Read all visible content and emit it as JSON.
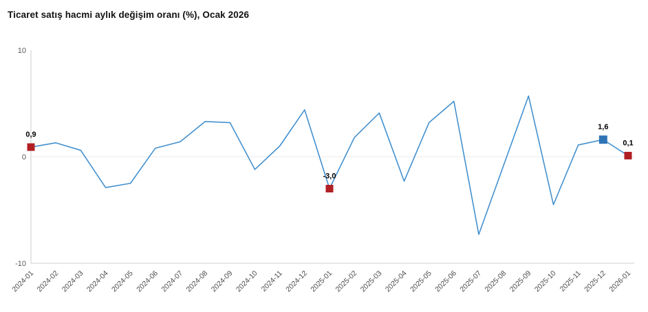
{
  "title": "Ticaret satış hacmi aylık değişim oranı (%), Ocak 2026",
  "colors": {
    "line": "#4390ce",
    "marker_red": "#b11f24",
    "marker_blue": "#2f74b5",
    "axis_line": "#cccccc",
    "zero_gridline": "#e8e8e8",
    "y_tick_text": "#595959",
    "x_tick_text": "#4a4a4a",
    "point_label_text": "#000000",
    "title_text": "#111111"
  },
  "chart_data": {
    "type": "line",
    "title": "Ticaret satış hacmi aylık değişim oranı (%), Ocak 2026",
    "x": [
      "2024-01",
      "2024-02",
      "2024-03",
      "2024-04",
      "2024-05",
      "2024-06",
      "2024-07",
      "2024-08",
      "2024-09",
      "2024-10",
      "2024-11",
      "2024-12",
      "2025-01",
      "2025-02",
      "2025-03",
      "2025-04",
      "2025-05",
      "2025-06",
      "2025-07",
      "2025-08",
      "2025-09",
      "2025-10",
      "2025-11",
      "2025-12",
      "2026-01"
    ],
    "values": [
      0.9,
      1.3,
      0.6,
      -2.9,
      -2.5,
      0.8,
      1.4,
      3.3,
      3.2,
      -1.2,
      1.0,
      4.4,
      -3.0,
      1.8,
      4.1,
      -2.3,
      3.2,
      5.2,
      -7.3,
      -0.8,
      5.7,
      -4.5,
      1.1,
      1.6,
      0.1
    ],
    "ylim": [
      -10,
      10
    ],
    "yticks": [
      10,
      0,
      -10
    ],
    "ytick_labels": [
      "10",
      "0",
      "-10"
    ],
    "grid": "zero-line-only",
    "legend": "none",
    "x_label_rotation_deg": -45,
    "labeled_points": [
      {
        "x": "2024-01",
        "value": 0.9,
        "label": "0,9",
        "marker": "red"
      },
      {
        "x": "2025-01",
        "value": -3.0,
        "label": "-3,0",
        "marker": "red"
      },
      {
        "x": "2025-12",
        "value": 1.6,
        "label": "1,6",
        "marker": "blue"
      },
      {
        "x": "2026-01",
        "value": 0.1,
        "label": "0,1",
        "marker": "red"
      }
    ]
  }
}
